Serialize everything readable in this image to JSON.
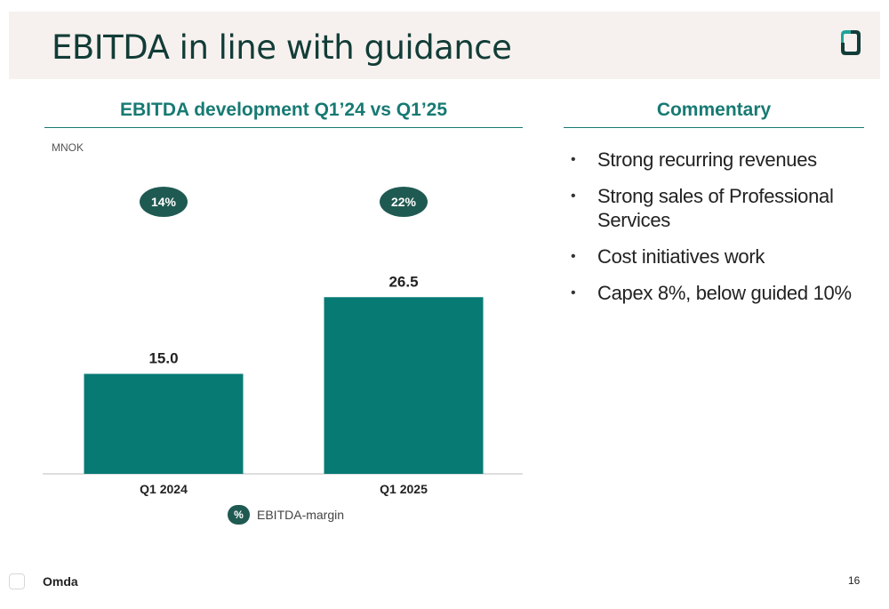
{
  "slide": {
    "title": "EBITDA in line with guidance",
    "page_number": "16",
    "brand": "Omda"
  },
  "chart_panel": {
    "heading": "EBITDA development Q1’24 vs Q1’25",
    "unit_label": "MNOK",
    "legend_symbol": "%",
    "legend_label": "EBITDA-margin"
  },
  "commentary": {
    "heading": "Commentary",
    "bullets": [
      "Strong recurring revenues",
      "Strong sales of Professional Services",
      "Cost initiatives work",
      "Capex 8%, below guided 10%"
    ]
  },
  "colors": {
    "bar": "#077a74",
    "accent": "#177a73",
    "margin_pill": "#1f5a52",
    "title": "#123c37",
    "header_band": "#f6f1ee"
  },
  "chart_data": {
    "type": "bar",
    "categories": [
      "Q1 2024",
      "Q1 2025"
    ],
    "values": [
      15.0,
      26.5
    ],
    "value_labels": [
      "15.0",
      "26.5"
    ],
    "margins": [
      "14%",
      "22%"
    ],
    "ylabel": "MNOK",
    "ylim": [
      0,
      36
    ],
    "grid": false
  }
}
